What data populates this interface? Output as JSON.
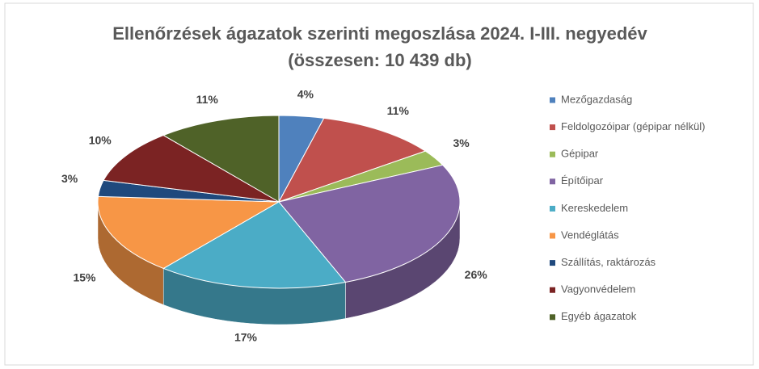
{
  "chart_data": {
    "type": "pie3d",
    "title": "Ellenőrzések ágazatok szerinti megoszlása 2024. I-III. negyedév",
    "subtitle": "(összesen: 10 439 db)",
    "categories": [
      "Mezőgazdaság",
      "Feldolgozóipar (gépipar nélkül)",
      "Gépipar",
      "Építőipar",
      "Kereskedelem",
      "Vendéglátás",
      "Szállítás, raktározás",
      "Vagyonvédelem",
      "Egyéb ágazatok"
    ],
    "values": [
      4,
      11,
      3,
      26,
      17,
      15,
      3,
      10,
      11
    ],
    "value_labels": [
      "4%",
      "11%",
      "3%",
      "26%",
      "17%",
      "15%",
      "3%",
      "10%",
      "11%"
    ],
    "colors": [
      "#4f81bd",
      "#c0504d",
      "#9bbb59",
      "#8064a2",
      "#4bacc6",
      "#f79646",
      "#1f497d",
      "#7b2323",
      "#4f6228"
    ],
    "legend": "right"
  }
}
